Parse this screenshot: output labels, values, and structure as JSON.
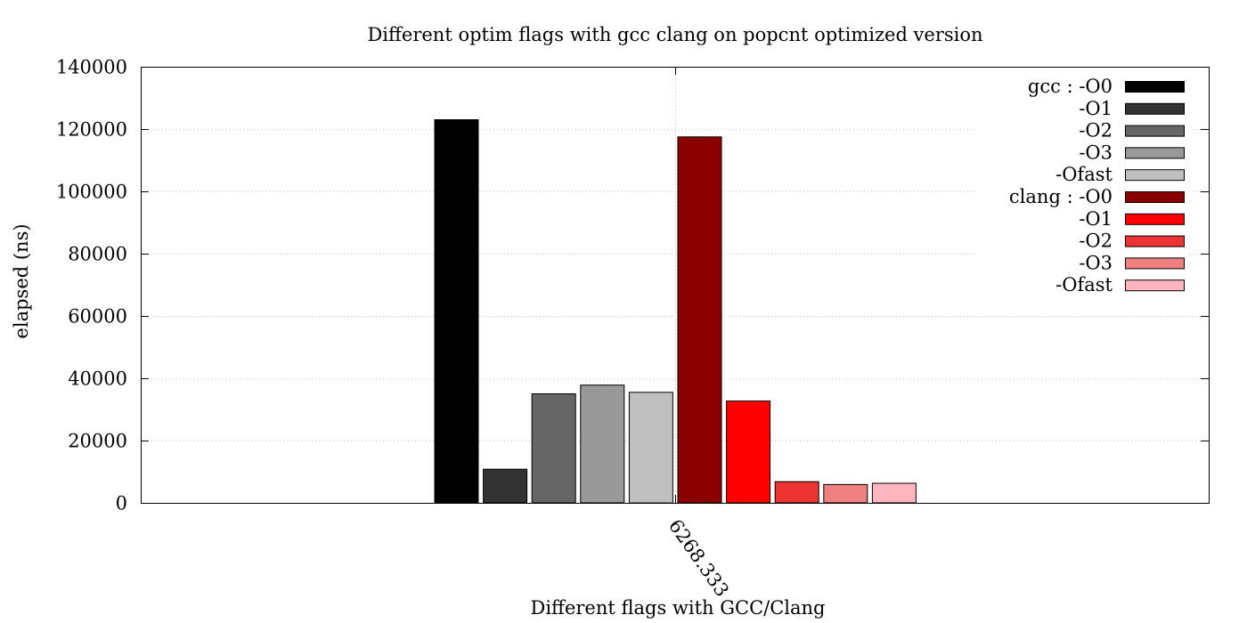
{
  "chart_data": {
    "type": "bar",
    "title": "Different optim flags with gcc  clang on popcnt optimized version",
    "xlabel": "Different flags with GCC/Clang",
    "ylabel": "elapsed (ns)",
    "categories": [
      "6268.333"
    ],
    "ylim": [
      0,
      140000
    ],
    "yticks": [
      0,
      20000,
      40000,
      60000,
      80000,
      100000,
      120000,
      140000
    ],
    "grid": true,
    "legend_position": "top-right",
    "series": [
      {
        "name": "gcc : -O0",
        "color": "#000000",
        "values": [
          123000
        ]
      },
      {
        "name": "-O1",
        "color": "#333333",
        "values": [
          10800
        ]
      },
      {
        "name": "-O2",
        "color": "#666666",
        "values": [
          35000
        ]
      },
      {
        "name": "-O3",
        "color": "#999999",
        "values": [
          37800
        ]
      },
      {
        "name": "-Ofast",
        "color": "#bfbfbf",
        "values": [
          35500
        ]
      },
      {
        "name": "clang : -O0",
        "color": "#8b0000",
        "values": [
          117500
        ]
      },
      {
        "name": "-O1",
        "color": "#ff0000",
        "values": [
          32700
        ]
      },
      {
        "name": "-O2",
        "color": "#ee3333",
        "values": [
          6800
        ]
      },
      {
        "name": "-O3",
        "color": "#f08080",
        "values": [
          5900
        ]
      },
      {
        "name": "-Ofast",
        "color": "#ffb6c1",
        "values": [
          6300
        ]
      }
    ]
  }
}
